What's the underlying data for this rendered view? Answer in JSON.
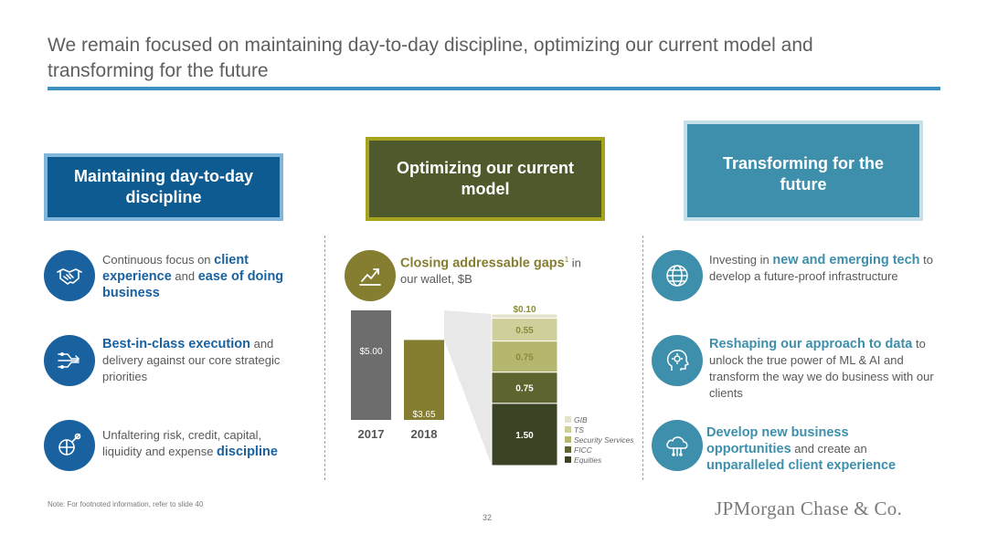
{
  "slide": {
    "title": "We remain focused on maintaining day-to-day discipline, optimizing our current model and transforming for the future",
    "footnote": "Note: For footnoted information, refer to slide 40",
    "page_number": "32",
    "logo_text": "JPMorgan Chase & Co."
  },
  "pillars": {
    "left": "Maintaining day-to-day discipline",
    "middle": "Optimizing our current model",
    "right": "Transforming for the future"
  },
  "left_items": [
    {
      "pre": "Continuous focus on ",
      "b1": "client experience",
      "mid": " and ",
      "b2": "ease of doing business"
    },
    {
      "b1": "Best-in-class execution",
      "post": " and delivery against our core strategic priorities"
    },
    {
      "pre": "Unfaltering risk, credit, capital, liquidity and expense ",
      "b1": "discipline"
    }
  ],
  "middle_item": {
    "b1": "Closing addressable gaps",
    "sup": "1",
    "post": " in",
    "line2": "our wallet, $B"
  },
  "right_items": [
    {
      "pre": "Investing in ",
      "b1": "new and emerging tech",
      "post": " to develop a future-proof infrastructure"
    },
    {
      "b1": "Reshaping our approach to data",
      "post": " to unlock the true power of ML & AI and transform the way we do business with our clients"
    },
    {
      "b1": "Develop new business opportunities",
      "mid": " and create an ",
      "b2": "unparalleled client experience"
    }
  ],
  "icons": {
    "left": [
      "handshake-icon",
      "workflow-arrows-icon",
      "magnifier-globe-icon"
    ],
    "middle": [
      "growth-chart-icon"
    ],
    "right": [
      "globe-icon",
      "head-gear-icon",
      "cloud-network-icon"
    ]
  },
  "chart_data": {
    "type": "bar",
    "categories": [
      "2017",
      "2018"
    ],
    "values": [
      5.0,
      3.65
    ],
    "value_labels": [
      "$5.00",
      "$3.65"
    ],
    "bar_colors": [
      "#6d6d6d",
      "#857d2f"
    ],
    "breakdown": {
      "type": "stacked-bar",
      "series": [
        {
          "name": "Equities",
          "value": 1.5,
          "label": "1.50",
          "color": "#3a4324"
        },
        {
          "name": "FICC",
          "value": 0.75,
          "label": "0.75",
          "color": "#5e6330"
        },
        {
          "name": "Security Services",
          "value": 0.75,
          "label": "0.75",
          "color": "#b6b76f"
        },
        {
          "name": "TS",
          "value": 0.55,
          "label": "0.55",
          "color": "#cfcf9c"
        },
        {
          "name": "GIB",
          "value": 0.1,
          "label": "$0.10",
          "color": "#e4e4cc"
        }
      ],
      "legend_order": [
        "GIB",
        "TS",
        "Security Services",
        "FICC",
        "Equities"
      ]
    }
  }
}
